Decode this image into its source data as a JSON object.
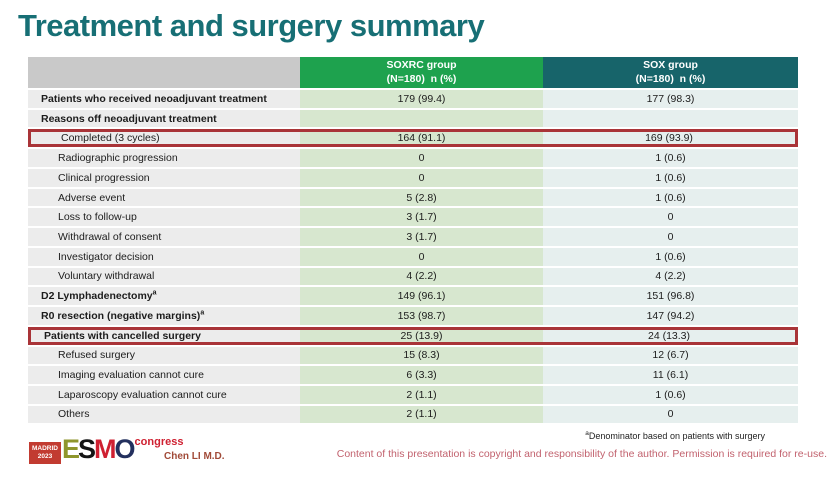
{
  "slide": {
    "title": "Treatment and surgery summary"
  },
  "table": {
    "columns": [
      {
        "title": "",
        "subtitle": ""
      },
      {
        "title": "SOXRC group",
        "subtitle": "(N=180)  n (%)"
      },
      {
        "title": "SOX group",
        "subtitle": "(N=180)  n (%)"
      }
    ],
    "rows": [
      {
        "label": "Patients who received neoadjuvant treatment",
        "soxrc": "179 (99.4)",
        "sox": "177 (98.3)",
        "bold": true
      },
      {
        "label": "Reasons off neoadjuvant treatment",
        "soxrc": "",
        "sox": "",
        "bold": true
      },
      {
        "label": "Completed (3 cycles)",
        "soxrc": "164 (91.1)",
        "sox": "169 (93.9)",
        "indent": true,
        "highlight": true
      },
      {
        "label": "Radiographic progression",
        "soxrc": "0",
        "sox": "1 (0.6)",
        "indent": true
      },
      {
        "label": "Clinical progression",
        "soxrc": "0",
        "sox": "1 (0.6)",
        "indent": true
      },
      {
        "label": "Adverse event",
        "soxrc": "5 (2.8)",
        "sox": "1 (0.6)",
        "indent": true
      },
      {
        "label": "Loss to follow-up",
        "soxrc": "3 (1.7)",
        "sox": "0",
        "indent": true
      },
      {
        "label": "Withdrawal of consent",
        "soxrc": "3 (1.7)",
        "sox": "0",
        "indent": true
      },
      {
        "label": "Investigator decision",
        "soxrc": "0",
        "sox": "1 (0.6)",
        "indent": true
      },
      {
        "label": "Voluntary withdrawal",
        "soxrc": "4 (2.2)",
        "sox": "4 (2.2)",
        "indent": true
      },
      {
        "label": "D2 Lymphadenectomy",
        "sup": "a",
        "soxrc": "149 (96.1)",
        "sox": "151 (96.8)",
        "bold": true
      },
      {
        "label": "R0 resection (negative margins)",
        "sup": "a",
        "soxrc": "153 (98.7)",
        "sox": "147 (94.2)",
        "bold": true
      },
      {
        "label": "Patients with cancelled surgery",
        "soxrc": "25 (13.9)",
        "sox": "24 (13.3)",
        "bold": true,
        "highlight": true
      },
      {
        "label": "Refused surgery",
        "soxrc": "15 (8.3)",
        "sox": "12 (6.7)",
        "indent": true
      },
      {
        "label": "Imaging evaluation cannot cure",
        "soxrc": "6 (3.3)",
        "sox": "11 (6.1)",
        "indent": true
      },
      {
        "label": "Laparoscopy evaluation cannot cure",
        "soxrc": "2 (1.1)",
        "sox": "1 (0.6)",
        "indent": true
      },
      {
        "label": "Others",
        "soxrc": "2 (1.1)",
        "sox": "0",
        "indent": true
      }
    ]
  },
  "footer": {
    "footnote_sup": "a",
    "footnote": "Denominator based on patients with surgery",
    "copyright": "Content of this presentation is copyright and responsibility of the author. Permission is required for re-use.",
    "author": "Chen LI M.D.",
    "logo": {
      "badge_line1": "MADRID",
      "badge_line2": "2023",
      "letters": [
        "E",
        "S",
        "M",
        "O"
      ],
      "congress": "congress"
    }
  },
  "colors": {
    "title": "#176f75",
    "header_green": "#1ea24e",
    "header_teal": "#17646a",
    "header_gray": "#c9c9c9",
    "label_cell": "#ececec",
    "soxrc_cell": "#d7e7cf",
    "sox_cell": "#e6efee",
    "highlight_border": "#a93438",
    "author_text": "#a14a38",
    "copyright_text": "#c2626e",
    "logo_red": "#cf2031"
  }
}
